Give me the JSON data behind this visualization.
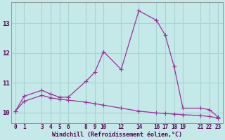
{
  "title": "",
  "xlabel": "Windchill (Refroidissement éolien,°C)",
  "background_color": "#c5e8e8",
  "grid_color": "#a8d4d4",
  "line_color": "#993399",
  "line1_x": [
    0,
    1,
    3,
    4,
    5,
    6,
    8,
    9,
    10,
    12,
    14,
    16,
    17,
    18,
    19,
    21,
    22,
    23
  ],
  "line1_y": [
    10.05,
    10.55,
    10.75,
    10.62,
    10.52,
    10.52,
    11.05,
    11.35,
    12.05,
    11.45,
    13.42,
    13.1,
    12.6,
    11.55,
    10.15,
    10.15,
    10.1,
    9.85
  ],
  "line2_x": [
    0,
    1,
    3,
    4,
    5,
    6,
    8,
    9,
    10,
    12,
    14,
    16,
    17,
    18,
    19,
    21,
    22,
    23
  ],
  "line2_y": [
    10.05,
    10.38,
    10.58,
    10.5,
    10.45,
    10.42,
    10.35,
    10.3,
    10.25,
    10.15,
    10.05,
    9.99,
    9.97,
    9.95,
    9.93,
    9.9,
    9.87,
    9.82
  ],
  "xlim": [
    -0.5,
    23.5
  ],
  "ylim": [
    9.65,
    13.7
  ],
  "xticks": [
    0,
    1,
    3,
    4,
    5,
    6,
    8,
    9,
    10,
    12,
    14,
    16,
    17,
    18,
    19,
    21,
    22,
    23
  ],
  "yticks": [
    10,
    11,
    12,
    13
  ],
  "markersize": 2.5,
  "linewidth": 0.9
}
